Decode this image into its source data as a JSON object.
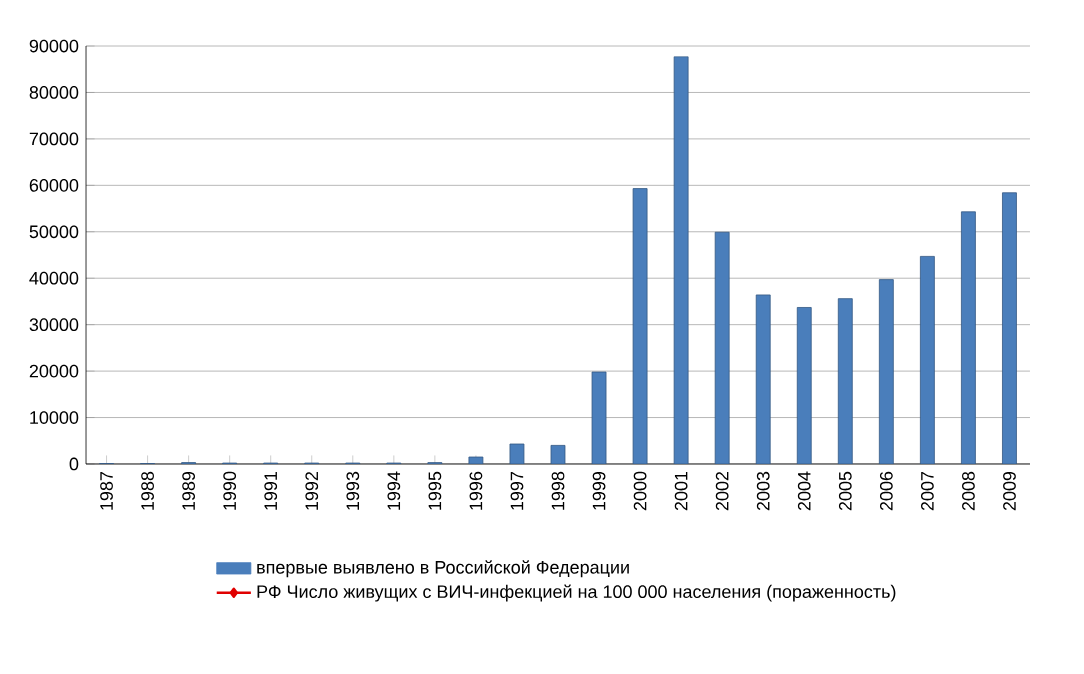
{
  "chart_data": {
    "type": "bar",
    "categories": [
      "1987",
      "1988",
      "1989",
      "1990",
      "1991",
      "1992",
      "1993",
      "1994",
      "1995",
      "1996",
      "1997",
      "1998",
      "1999",
      "2000",
      "2001",
      "2002",
      "2003",
      "2004",
      "2005",
      "2006",
      "2007",
      "2008",
      "2009"
    ],
    "series": [
      {
        "name": "впервые выявлено в Российской Федерации",
        "color": "#4a7ebb",
        "values": [
          100,
          100,
          300,
          200,
          200,
          200,
          200,
          200,
          300,
          1500,
          4300,
          4000,
          19800,
          59300,
          87700,
          49900,
          36400,
          33700,
          35600,
          39700,
          44700,
          54300,
          58400
        ]
      },
      {
        "name": "РФ Число живущих с ВИЧ-инфекцией на 100 000 населения (пораженность)",
        "type": "line",
        "color": "#e00000",
        "marker": "diamond",
        "values": [
          null,
          null,
          null,
          null,
          null,
          null,
          null,
          null,
          null,
          null,
          null,
          null,
          null,
          null,
          null,
          null,
          null,
          null,
          null,
          null,
          null,
          null,
          null
        ]
      }
    ],
    "ylim": [
      0,
      90000
    ],
    "yticks": [
      0,
      10000,
      20000,
      30000,
      40000,
      50000,
      60000,
      70000,
      80000,
      90000
    ],
    "grid": "y",
    "legend": "bottom"
  }
}
